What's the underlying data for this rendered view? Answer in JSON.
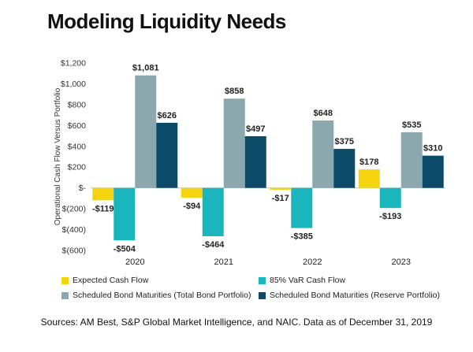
{
  "title": "Modeling Liquidity Needs",
  "source": "Sources: AM Best, S&P Global Market Intelligence, and NAIC. Data as of December 31, 2019",
  "chart_data": {
    "type": "bar",
    "title": "Modeling Liquidity Needs",
    "ylabel": "Operational Cash Flow Versus Portfolio",
    "xlabel": "",
    "categories": [
      "2020",
      "2021",
      "2022",
      "2023"
    ],
    "ylim": [
      -600,
      1200
    ],
    "yticks": [
      1200,
      1000,
      800,
      600,
      400,
      200,
      0,
      -200,
      -400,
      -600
    ],
    "ytick_labels": [
      "$1,200",
      "$1,000",
      "$800",
      "$600",
      "$400",
      "$200",
      "$-",
      "$(200)",
      "$(400)",
      "$(600)"
    ],
    "grid": false,
    "legend_position": "bottom",
    "series": [
      {
        "name": "Expected Cash Flow",
        "color": "#f5d40f",
        "values": [
          -119,
          -94,
          -17,
          178
        ],
        "labels": [
          "-$119",
          "-$94",
          "-$17",
          "$178"
        ]
      },
      {
        "name": "85% VaR Cash Flow",
        "color": "#1ab5bd",
        "values": [
          -504,
          -464,
          -385,
          -193
        ],
        "labels": [
          "-$504",
          "-$464",
          "-$385",
          "-$193"
        ]
      },
      {
        "name": "Scheduled Bond Maturities (Total Bond Portfolio)",
        "color": "#8aa8ae",
        "values": [
          1081,
          858,
          648,
          535
        ],
        "labels": [
          "$1,081",
          "$858",
          "$648",
          "$535"
        ]
      },
      {
        "name": "Scheduled Bond Maturities (Reserve Portfolio)",
        "color": "#0b4a68",
        "values": [
          626,
          497,
          375,
          310
        ],
        "labels": [
          "$626",
          "$497",
          "$375",
          "$310"
        ]
      }
    ]
  }
}
